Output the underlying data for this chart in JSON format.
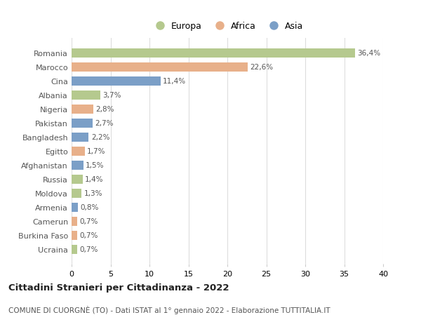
{
  "countries": [
    "Romania",
    "Marocco",
    "Cina",
    "Albania",
    "Nigeria",
    "Pakistan",
    "Bangladesh",
    "Egitto",
    "Afghanistan",
    "Russia",
    "Moldova",
    "Armenia",
    "Camerun",
    "Burkina Faso",
    "Ucraina"
  ],
  "values": [
    36.4,
    22.6,
    11.4,
    3.7,
    2.8,
    2.7,
    2.2,
    1.7,
    1.5,
    1.4,
    1.3,
    0.8,
    0.7,
    0.7,
    0.7
  ],
  "labels": [
    "36,4%",
    "22,6%",
    "11,4%",
    "3,7%",
    "2,8%",
    "2,7%",
    "2,2%",
    "1,7%",
    "1,5%",
    "1,4%",
    "1,3%",
    "0,8%",
    "0,7%",
    "0,7%",
    "0,7%"
  ],
  "continents": [
    "Europa",
    "Africa",
    "Asia",
    "Europa",
    "Africa",
    "Asia",
    "Asia",
    "Africa",
    "Asia",
    "Europa",
    "Europa",
    "Asia",
    "Africa",
    "Africa",
    "Europa"
  ],
  "colors": {
    "Europa": "#b5c98e",
    "Africa": "#e8b08a",
    "Asia": "#7b9fc7"
  },
  "legend_order": [
    "Europa",
    "Africa",
    "Asia"
  ],
  "xlim": [
    0,
    40
  ],
  "xticks": [
    0,
    5,
    10,
    15,
    20,
    25,
    30,
    35,
    40
  ],
  "title": "Cittadini Stranieri per Cittadinanza - 2022",
  "subtitle": "COMUNE DI CUORGNÈ (TO) - Dati ISTAT al 1° gennaio 2022 - Elaborazione TUTTITALIA.IT",
  "bg_color": "#ffffff",
  "grid_color": "#dddddd",
  "bar_height": 0.65
}
